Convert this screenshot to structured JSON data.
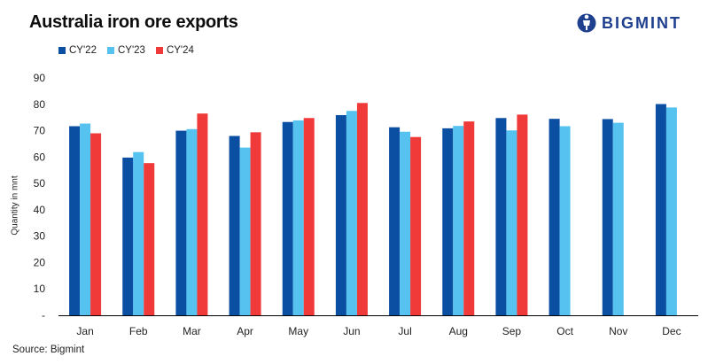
{
  "header": {
    "title": "Australia iron ore exports",
    "brand": "BIGMINT"
  },
  "footer": {
    "source": "Source: Bigmint"
  },
  "colors": {
    "cy22": "#0b4fa3",
    "cy23": "#55c2f0",
    "cy24": "#ef3a39",
    "axis": "#000000",
    "brand": "#1f3f8f"
  },
  "chart_data": {
    "type": "bar",
    "title": "Australia iron ore exports",
    "xlabel": "",
    "ylabel": "Quantity in mnt",
    "ylim": [
      0,
      90
    ],
    "yticks": [
      "-",
      "10",
      "20",
      "30",
      "40",
      "50",
      "60",
      "70",
      "80",
      "90"
    ],
    "grid": false,
    "legend": "top-left",
    "categories": [
      "Jan",
      "Feb",
      "Mar",
      "Apr",
      "May",
      "Jun",
      "Jul",
      "Aug",
      "Sep",
      "Oct",
      "Nov",
      "Dec"
    ],
    "series": [
      {
        "name": "CY'22",
        "color": "#0b4fa3",
        "values": [
          71.7,
          59.8,
          70.0,
          68.0,
          73.3,
          75.9,
          71.3,
          70.9,
          74.8,
          74.5,
          74.4,
          80.1
        ]
      },
      {
        "name": "CY'23",
        "color": "#55c2f0",
        "values": [
          72.7,
          61.9,
          70.6,
          63.6,
          73.9,
          77.5,
          69.6,
          71.8,
          70.1,
          71.7,
          73.0,
          78.8
        ]
      },
      {
        "name": "CY'24",
        "color": "#ef3a39",
        "values": [
          69.0,
          57.7,
          76.5,
          69.4,
          74.8,
          80.5,
          67.6,
          73.5,
          76.1,
          null,
          null,
          null
        ]
      }
    ]
  }
}
